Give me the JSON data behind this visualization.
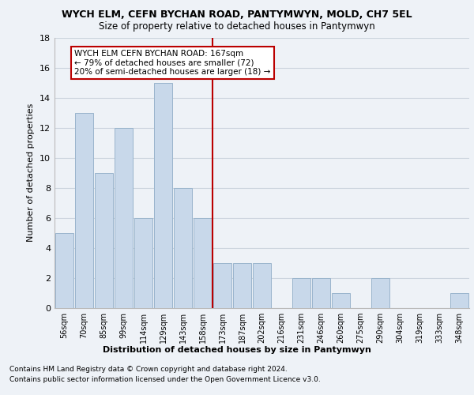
{
  "title1": "WYCH ELM, CEFN BYCHAN ROAD, PANTYMWYN, MOLD, CH7 5EL",
  "title2": "Size of property relative to detached houses in Pantymwyn",
  "xlabel": "Distribution of detached houses by size in Pantymwyn",
  "ylabel": "Number of detached properties",
  "categories": [
    "56sqm",
    "70sqm",
    "85sqm",
    "99sqm",
    "114sqm",
    "129sqm",
    "143sqm",
    "158sqm",
    "173sqm",
    "187sqm",
    "202sqm",
    "216sqm",
    "231sqm",
    "246sqm",
    "260sqm",
    "275sqm",
    "290sqm",
    "304sqm",
    "319sqm",
    "333sqm",
    "348sqm"
  ],
  "values": [
    5,
    13,
    9,
    12,
    6,
    15,
    8,
    6,
    3,
    3,
    3,
    0,
    2,
    2,
    1,
    0,
    2,
    0,
    0,
    0,
    1
  ],
  "bar_color": "#c8d8ea",
  "bar_edge_color": "#9ab4cc",
  "vline_index": 8,
  "vline_color": "#bb0000",
  "annotation_text": "WYCH ELM CEFN BYCHAN ROAD: 167sqm\n← 79% of detached houses are smaller (72)\n20% of semi-detached houses are larger (18) →",
  "annotation_box_color": "#bb0000",
  "ylim": [
    0,
    18
  ],
  "yticks": [
    0,
    2,
    4,
    6,
    8,
    10,
    12,
    14,
    16,
    18
  ],
  "footer1": "Contains HM Land Registry data © Crown copyright and database right 2024.",
  "footer2": "Contains public sector information licensed under the Open Government Licence v3.0.",
  "bg_color": "#eef2f7",
  "plot_bg_color": "#eef2f7",
  "grid_color": "#ccd4de"
}
